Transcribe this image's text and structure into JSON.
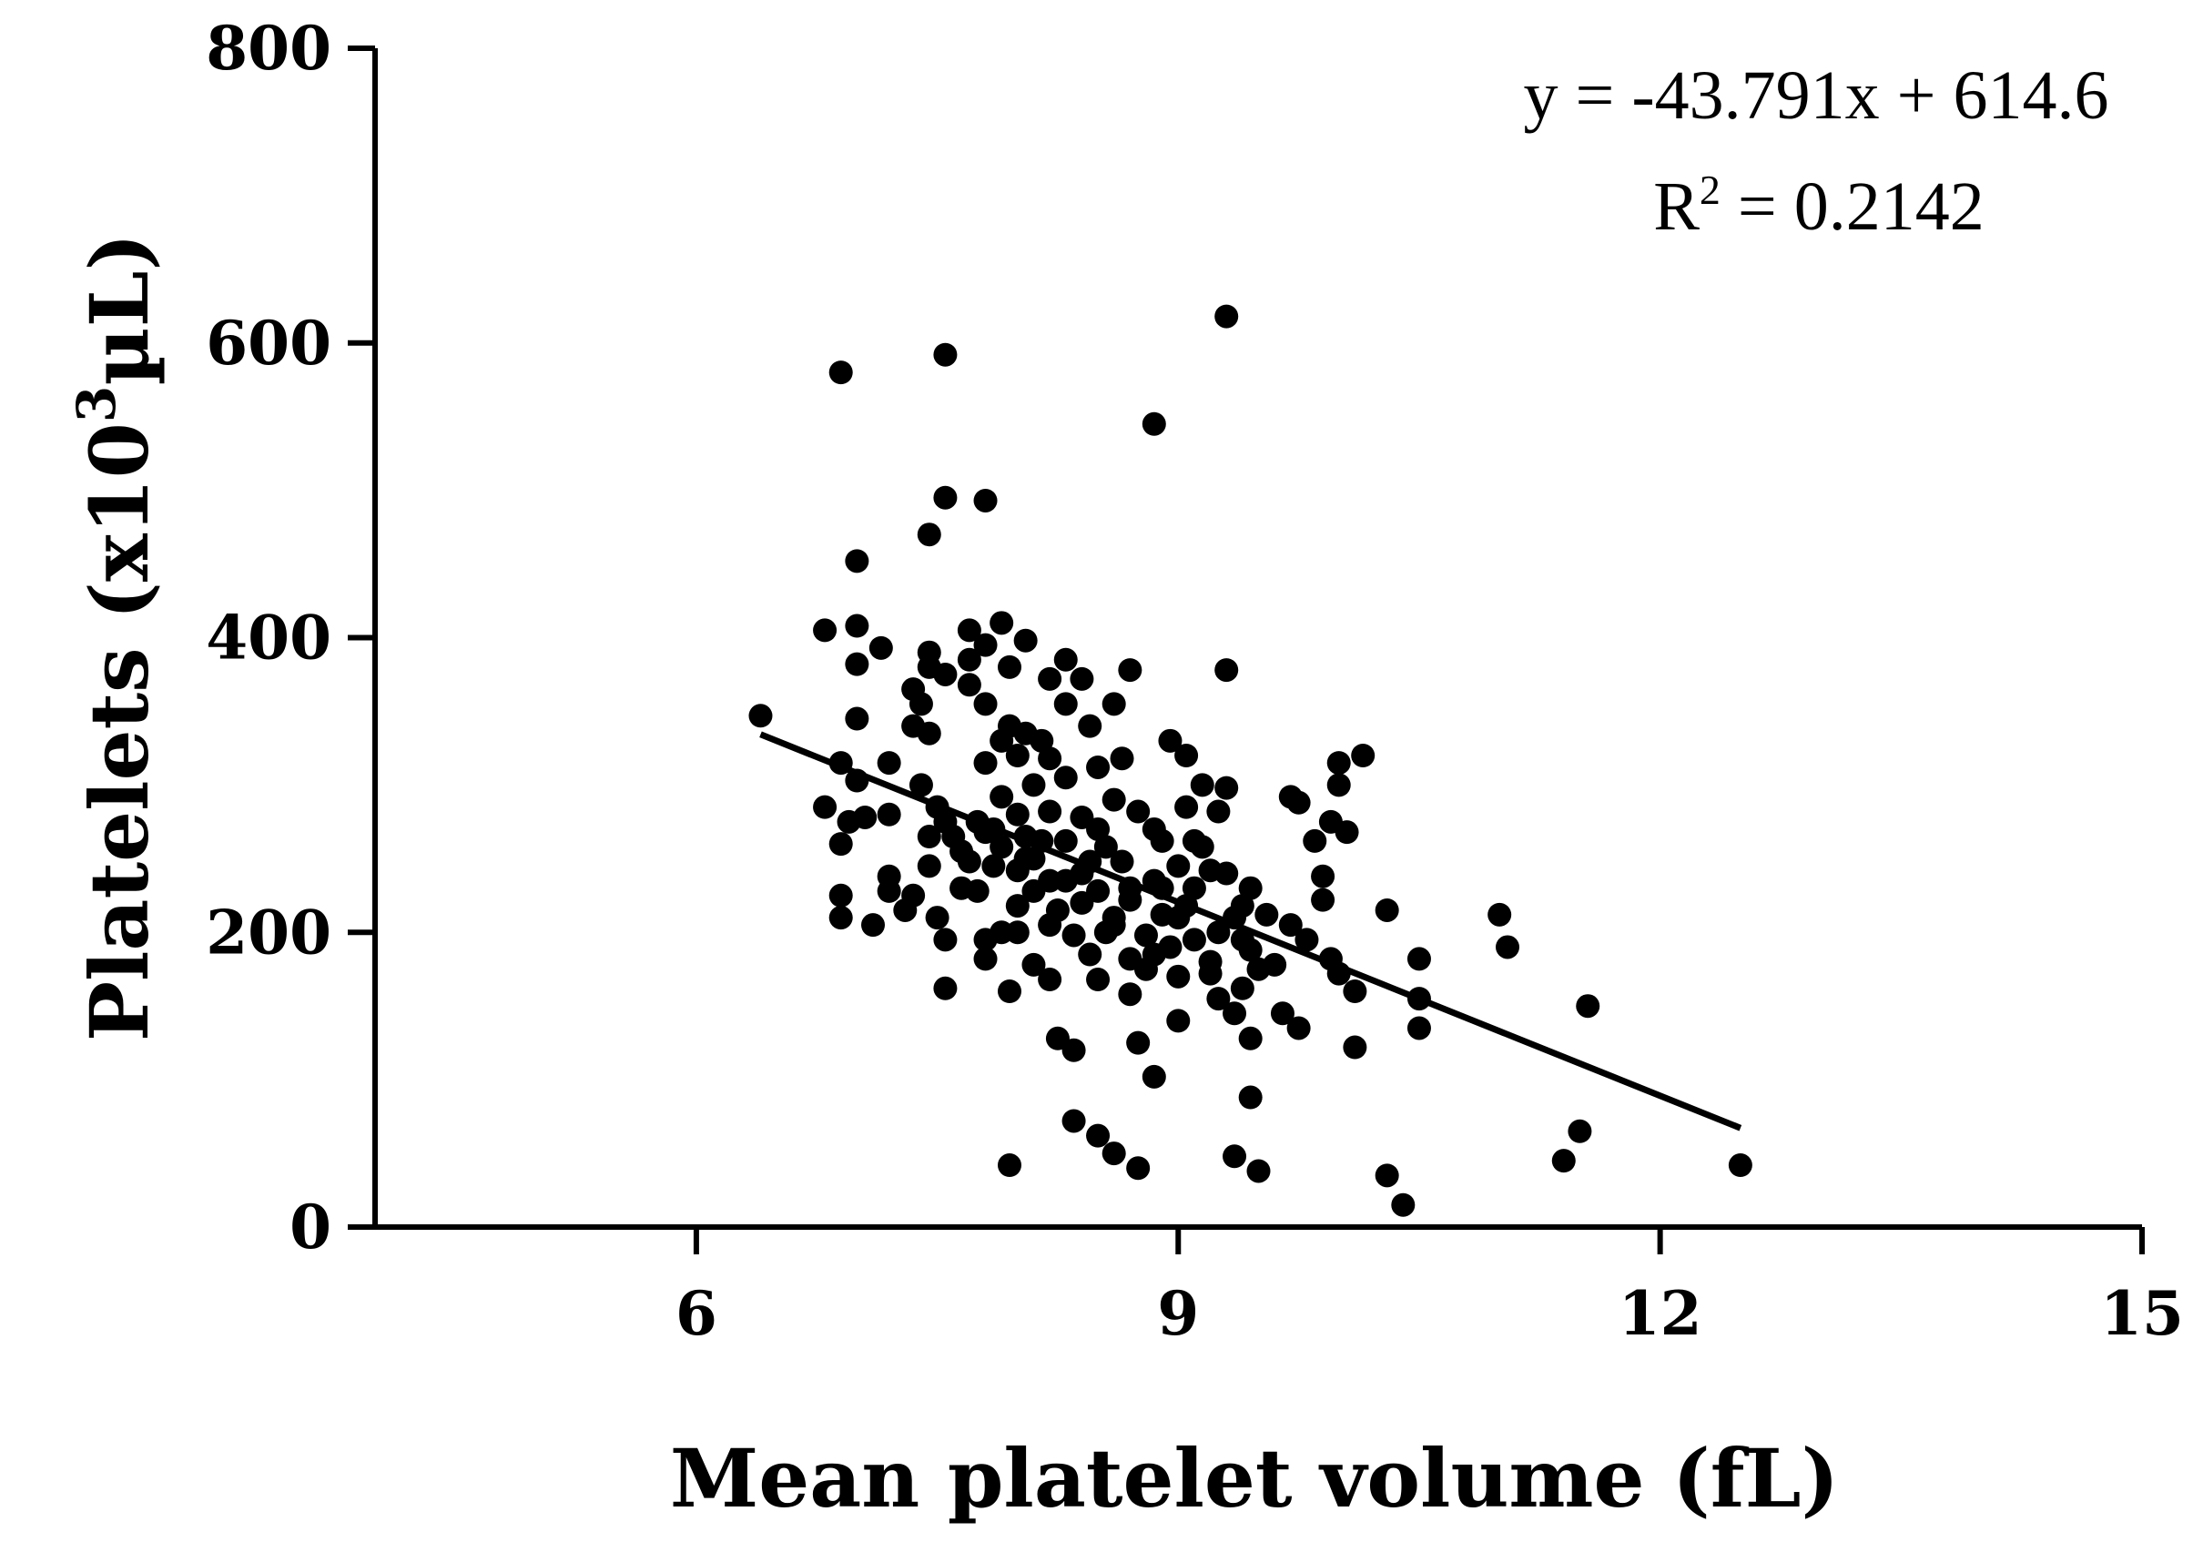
{
  "chart_data": {
    "type": "scatter",
    "title": "",
    "xlabel": "Mean platelet volume (fL)",
    "ylabel_parts": [
      "Platelets (x10",
      "3",
      "µL)"
    ],
    "xlim": [
      4,
      15
    ],
    "ylim": [
      0,
      800
    ],
    "xticks": [
      6,
      9,
      12,
      15
    ],
    "yticks": [
      0,
      200,
      400,
      600,
      800
    ],
    "grid": false,
    "legend": "none",
    "point_color": "#000000",
    "annotations": {
      "equation": "y = -43.791x + 614.6",
      "r_squared_prefix": "R",
      "r_squared_sup": "2",
      "r_squared_value": " = 0.2142"
    },
    "trendline": {
      "slope": -43.791,
      "intercept": 614.6,
      "x_start": 6.4,
      "x_end": 12.5
    },
    "points": [
      [
        6.4,
        347
      ],
      [
        6.8,
        405
      ],
      [
        6.8,
        285
      ],
      [
        6.9,
        580
      ],
      [
        6.9,
        315
      ],
      [
        6.9,
        260
      ],
      [
        6.9,
        225
      ],
      [
        6.9,
        210
      ],
      [
        6.95,
        275
      ],
      [
        7.0,
        452
      ],
      [
        7.0,
        408
      ],
      [
        7.0,
        382
      ],
      [
        7.0,
        345
      ],
      [
        7.0,
        303
      ],
      [
        7.05,
        278
      ],
      [
        7.1,
        205
      ],
      [
        7.15,
        393
      ],
      [
        7.2,
        315
      ],
      [
        7.2,
        280
      ],
      [
        7.2,
        238
      ],
      [
        7.2,
        228
      ],
      [
        7.3,
        215
      ],
      [
        7.35,
        365
      ],
      [
        7.35,
        340
      ],
      [
        7.35,
        225
      ],
      [
        7.4,
        355
      ],
      [
        7.4,
        300
      ],
      [
        7.45,
        470
      ],
      [
        7.45,
        390
      ],
      [
        7.45,
        380
      ],
      [
        7.45,
        335
      ],
      [
        7.45,
        265
      ],
      [
        7.45,
        245
      ],
      [
        7.5,
        285
      ],
      [
        7.5,
        210
      ],
      [
        7.55,
        592
      ],
      [
        7.55,
        495
      ],
      [
        7.55,
        375
      ],
      [
        7.55,
        275
      ],
      [
        7.55,
        195
      ],
      [
        7.55,
        162
      ],
      [
        7.6,
        265
      ],
      [
        7.65,
        255
      ],
      [
        7.7,
        405
      ],
      [
        7.7,
        385
      ],
      [
        7.7,
        368
      ],
      [
        7.7,
        248
      ],
      [
        7.75,
        275
      ],
      [
        7.75,
        228
      ],
      [
        7.8,
        493
      ],
      [
        7.8,
        395
      ],
      [
        7.8,
        355
      ],
      [
        7.8,
        315
      ],
      [
        7.8,
        268
      ],
      [
        7.8,
        195
      ],
      [
        7.8,
        182
      ],
      [
        7.85,
        245
      ],
      [
        7.9,
        410
      ],
      [
        7.9,
        330
      ],
      [
        7.9,
        292
      ],
      [
        7.9,
        258
      ],
      [
        7.9,
        200
      ],
      [
        7.95,
        380
      ],
      [
        7.95,
        340
      ],
      [
        7.95,
        160
      ],
      [
        7.95,
        42
      ],
      [
        8.0,
        320
      ],
      [
        8.0,
        280
      ],
      [
        8.0,
        242
      ],
      [
        8.0,
        218
      ],
      [
        8.05,
        398
      ],
      [
        8.05,
        335
      ],
      [
        8.05,
        265
      ],
      [
        8.1,
        300
      ],
      [
        8.1,
        228
      ],
      [
        8.1,
        178
      ],
      [
        8.15,
        330
      ],
      [
        8.15,
        262
      ],
      [
        8.2,
        372
      ],
      [
        8.2,
        318
      ],
      [
        8.2,
        282
      ],
      [
        8.2,
        205
      ],
      [
        8.2,
        168
      ],
      [
        8.25,
        128
      ],
      [
        8.3,
        385
      ],
      [
        8.3,
        355
      ],
      [
        8.3,
        305
      ],
      [
        8.3,
        262
      ],
      [
        8.3,
        235
      ],
      [
        8.35,
        198
      ],
      [
        8.35,
        120
      ],
      [
        8.35,
        72
      ],
      [
        8.4,
        372
      ],
      [
        8.4,
        278
      ],
      [
        8.45,
        340
      ],
      [
        8.45,
        248
      ],
      [
        8.45,
        185
      ],
      [
        8.5,
        312
      ],
      [
        8.5,
        270
      ],
      [
        8.5,
        228
      ],
      [
        8.5,
        168
      ],
      [
        8.5,
        62
      ],
      [
        8.55,
        258
      ],
      [
        8.6,
        355
      ],
      [
        8.6,
        290
      ],
      [
        8.6,
        210
      ],
      [
        8.6,
        50
      ],
      [
        8.65,
        318
      ],
      [
        8.65,
        248
      ],
      [
        8.7,
        378
      ],
      [
        8.7,
        222
      ],
      [
        8.7,
        182
      ],
      [
        8.7,
        158
      ],
      [
        8.75,
        282
      ],
      [
        8.75,
        125
      ],
      [
        8.75,
        40
      ],
      [
        8.8,
        198
      ],
      [
        8.85,
        545
      ],
      [
        8.85,
        270
      ],
      [
        8.85,
        235
      ],
      [
        8.85,
        185
      ],
      [
        8.85,
        102
      ],
      [
        8.9,
        262
      ],
      [
        8.9,
        212
      ],
      [
        8.95,
        330
      ],
      [
        8.95,
        190
      ],
      [
        9.0,
        245
      ],
      [
        9.0,
        170
      ],
      [
        9.0,
        140
      ],
      [
        9.05,
        320
      ],
      [
        9.05,
        285
      ],
      [
        9.05,
        218
      ],
      [
        9.1,
        262
      ],
      [
        9.1,
        195
      ],
      [
        9.15,
        300
      ],
      [
        9.15,
        258
      ],
      [
        9.2,
        242
      ],
      [
        9.2,
        172
      ],
      [
        9.25,
        282
      ],
      [
        9.25,
        155
      ],
      [
        9.3,
        618
      ],
      [
        9.3,
        378
      ],
      [
        9.3,
        298
      ],
      [
        9.3,
        240
      ],
      [
        9.35,
        145
      ],
      [
        9.35,
        48
      ],
      [
        9.4,
        218
      ],
      [
        9.4,
        162
      ],
      [
        9.45,
        230
      ],
      [
        9.45,
        188
      ],
      [
        9.45,
        128
      ],
      [
        9.45,
        88
      ],
      [
        9.5,
        38
      ],
      [
        9.55,
        212
      ],
      [
        9.6,
        178
      ],
      [
        9.65,
        145
      ],
      [
        9.7,
        292
      ],
      [
        9.7,
        205
      ],
      [
        9.75,
        288
      ],
      [
        9.75,
        135
      ],
      [
        9.8,
        195
      ],
      [
        9.85,
        262
      ],
      [
        9.9,
        238
      ],
      [
        9.9,
        222
      ],
      [
        9.95,
        275
      ],
      [
        9.95,
        182
      ],
      [
        10.0,
        315
      ],
      [
        10.0,
        300
      ],
      [
        10.0,
        172
      ],
      [
        10.05,
        268
      ],
      [
        10.1,
        160
      ],
      [
        10.1,
        122
      ],
      [
        10.15,
        320
      ],
      [
        10.3,
        215
      ],
      [
        10.3,
        35
      ],
      [
        10.4,
        15
      ],
      [
        10.5,
        182
      ],
      [
        10.5,
        155
      ],
      [
        10.5,
        135
      ],
      [
        11.0,
        212
      ],
      [
        11.05,
        190
      ],
      [
        11.4,
        45
      ],
      [
        11.5,
        65
      ],
      [
        11.55,
        150
      ],
      [
        12.5,
        42
      ],
      [
        8.0,
        200
      ],
      [
        8.1,
        250
      ],
      [
        8.25,
        215
      ],
      [
        8.4,
        240
      ],
      [
        8.55,
        200
      ],
      [
        8.7,
        230
      ],
      [
        8.9,
        230
      ],
      [
        9.1,
        230
      ],
      [
        9.25,
        200
      ],
      [
        9.4,
        195
      ],
      [
        9.5,
        175
      ],
      [
        7.65,
        230
      ],
      [
        7.85,
        270
      ],
      [
        8.05,
        250
      ],
      [
        8.2,
        235
      ],
      [
        8.4,
        220
      ],
      [
        8.6,
        205
      ],
      [
        8.8,
        175
      ],
      [
        9.0,
        210
      ],
      [
        9.2,
        180
      ],
      [
        9.35,
        210
      ]
    ]
  }
}
